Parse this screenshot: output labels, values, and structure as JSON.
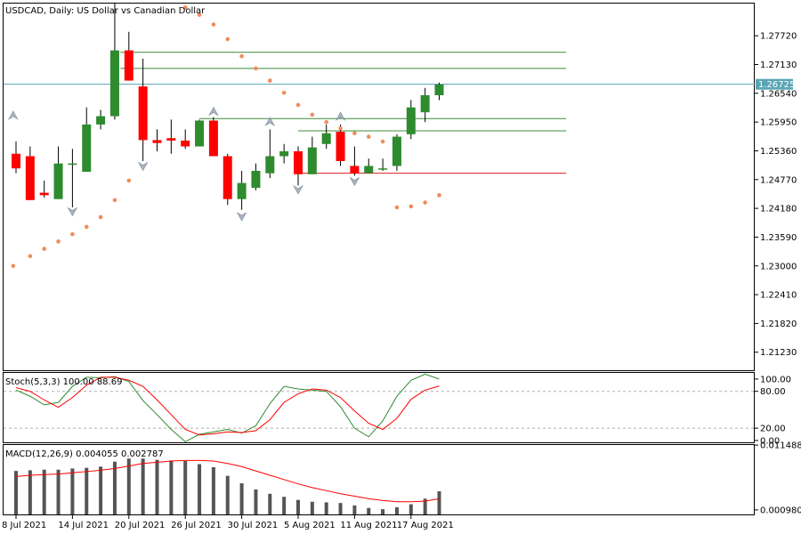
{
  "chart_data": [
    {
      "type": "candlestick",
      "title": "USDCAD, Daily:  US Dollar vs Canadian Dollar",
      "y_ticks": [
        "1.27720",
        "1.27130",
        "1.26540",
        "1.25950",
        "1.25360",
        "1.24770",
        "1.24180",
        "1.23590",
        "1.23000",
        "1.22410",
        "1.21820",
        "1.21230"
      ],
      "ylim": [
        1.2086,
        1.2838
      ],
      "x_ticks": [
        "8 Jul 2021",
        "14 Jul 2021",
        "20 Jul 2021",
        "26 Jul 2021",
        "30 Jul 2021",
        "5 Aug 2021",
        "11 Aug 2021",
        "17 Aug 2021"
      ],
      "x_tick_index": [
        0,
        4,
        8,
        12,
        16,
        20,
        24,
        28
      ],
      "current_price": "1.26725",
      "current_price_value": 1.26725,
      "colors": {
        "bull": "#2e8b2e",
        "bear": "#ff0000",
        "psar": "#f08c5a",
        "price_line": "#5aa5b4",
        "level_green": "#3c8c3c",
        "level_red": "#e02020"
      },
      "candles": [
        {
          "o": 1.253,
          "h": 1.2555,
          "l": 1.249,
          "c": 1.25
        },
        {
          "o": 1.2525,
          "h": 1.2545,
          "l": 1.2435,
          "c": 1.2435
        },
        {
          "o": 1.245,
          "h": 1.2475,
          "l": 1.244,
          "c": 1.2445
        },
        {
          "o": 1.2437,
          "h": 1.2545,
          "l": 1.2437,
          "c": 1.251
        },
        {
          "o": 1.251,
          "h": 1.254,
          "l": 1.242,
          "c": 1.251
        },
        {
          "o": 1.2493,
          "h": 1.2625,
          "l": 1.2493,
          "c": 1.259
        },
        {
          "o": 1.259,
          "h": 1.262,
          "l": 1.258,
          "c": 1.2607
        },
        {
          "o": 1.2607,
          "h": 1.2838,
          "l": 1.26,
          "c": 1.2742
        },
        {
          "o": 1.2742,
          "h": 1.278,
          "l": 1.268,
          "c": 1.268
        },
        {
          "o": 1.2668,
          "h": 1.2725,
          "l": 1.2515,
          "c": 1.2558
        },
        {
          "o": 1.2558,
          "h": 1.258,
          "l": 1.2535,
          "c": 1.2552
        },
        {
          "o": 1.2562,
          "h": 1.26,
          "l": 1.253,
          "c": 1.2557
        },
        {
          "o": 1.2557,
          "h": 1.258,
          "l": 1.254,
          "c": 1.2545
        },
        {
          "o": 1.2545,
          "h": 1.26,
          "l": 1.2545,
          "c": 1.2598
        },
        {
          "o": 1.2598,
          "h": 1.2605,
          "l": 1.2525,
          "c": 1.2525
        },
        {
          "o": 1.2525,
          "h": 1.253,
          "l": 1.2425,
          "c": 1.2437
        },
        {
          "o": 1.2437,
          "h": 1.2495,
          "l": 1.2415,
          "c": 1.247
        },
        {
          "o": 1.246,
          "h": 1.251,
          "l": 1.2455,
          "c": 1.2495
        },
        {
          "o": 1.249,
          "h": 1.258,
          "l": 1.248,
          "c": 1.2525
        },
        {
          "o": 1.2525,
          "h": 1.255,
          "l": 1.251,
          "c": 1.2535
        },
        {
          "o": 1.2535,
          "h": 1.2545,
          "l": 1.2465,
          "c": 1.2488
        },
        {
          "o": 1.2488,
          "h": 1.2565,
          "l": 1.2488,
          "c": 1.2543
        },
        {
          "o": 1.255,
          "h": 1.259,
          "l": 1.254,
          "c": 1.2572
        },
        {
          "o": 1.2575,
          "h": 1.259,
          "l": 1.2505,
          "c": 1.2515
        },
        {
          "o": 1.2505,
          "h": 1.2545,
          "l": 1.2485,
          "c": 1.249
        },
        {
          "o": 1.249,
          "h": 1.252,
          "l": 1.249,
          "c": 1.2505
        },
        {
          "o": 1.25,
          "h": 1.252,
          "l": 1.2495,
          "c": 1.25
        },
        {
          "o": 1.2505,
          "h": 1.257,
          "l": 1.2495,
          "c": 1.2565
        },
        {
          "o": 1.257,
          "h": 1.264,
          "l": 1.256,
          "c": 1.2625
        },
        {
          "o": 1.2615,
          "h": 1.2665,
          "l": 1.2595,
          "c": 1.265
        },
        {
          "o": 1.265,
          "h": 1.2676,
          "l": 1.264,
          "c": 1.2672
        }
      ],
      "psar": [
        {
          "i": -0.2,
          "v": 1.23
        },
        {
          "i": 1,
          "v": 1.232
        },
        {
          "i": 2,
          "v": 1.2335
        },
        {
          "i": 3,
          "v": 1.235
        },
        {
          "i": 4,
          "v": 1.2365
        },
        {
          "i": 5,
          "v": 1.238
        },
        {
          "i": 6,
          "v": 1.24
        },
        {
          "i": 7,
          "v": 1.2435
        },
        {
          "i": 8,
          "v": 1.2475
        },
        {
          "i": 12,
          "v": 1.283
        },
        {
          "i": 13,
          "v": 1.2815
        },
        {
          "i": 14,
          "v": 1.2795
        },
        {
          "i": 15,
          "v": 1.2765
        },
        {
          "i": 16,
          "v": 1.273
        },
        {
          "i": 17,
          "v": 1.2705
        },
        {
          "i": 18,
          "v": 1.268
        },
        {
          "i": 19,
          "v": 1.2655
        },
        {
          "i": 20,
          "v": 1.263
        },
        {
          "i": 21,
          "v": 1.261
        },
        {
          "i": 22,
          "v": 1.2595
        },
        {
          "i": 23,
          "v": 1.2582
        },
        {
          "i": 24,
          "v": 1.2572
        },
        {
          "i": 25,
          "v": 1.2565
        },
        {
          "i": 26,
          "v": 1.2555
        },
        {
          "i": 27,
          "v": 1.242
        },
        {
          "i": 28,
          "v": 1.2422
        },
        {
          "i": 29,
          "v": 1.243
        },
        {
          "i": 30,
          "v": 1.2445
        }
      ],
      "levels": [
        {
          "v": 1.2738,
          "from": 7.4,
          "to": 39,
          "color": "green"
        },
        {
          "v": 1.2705,
          "from": 7.4,
          "to": 39,
          "color": "green"
        },
        {
          "v": 1.2602,
          "from": 13,
          "to": 39,
          "color": "green"
        },
        {
          "v": 1.2577,
          "from": 20,
          "to": 39,
          "color": "green"
        },
        {
          "v": 1.249,
          "from": 20,
          "to": 39,
          "color": "red"
        }
      ],
      "fractals": [
        {
          "i": -0.2,
          "v": 1.261,
          "dir": "up"
        },
        {
          "i": 4,
          "v": 1.241,
          "dir": "down"
        },
        {
          "i": 9,
          "v": 1.2503,
          "dir": "down"
        },
        {
          "i": 14,
          "v": 1.2618,
          "dir": "up"
        },
        {
          "i": 16,
          "v": 1.24,
          "dir": "down"
        },
        {
          "i": 18,
          "v": 1.2597,
          "dir": "up"
        },
        {
          "i": 20,
          "v": 1.2455,
          "dir": "down"
        },
        {
          "i": 24,
          "v": 1.2472,
          "dir": "down"
        },
        {
          "i": 23,
          "v": 1.2608,
          "dir": "up"
        }
      ]
    },
    {
      "type": "line",
      "title": "Stoch(5,3,3) 100.00 88.69",
      "y_ticks": [
        "100.00",
        "80.00",
        "20.00",
        "0.00"
      ],
      "ylim": [
        -3,
        110
      ],
      "series": [
        {
          "color": "#2e8b2e",
          "values": [
            82,
            72,
            58,
            62,
            88,
            103,
            102,
            104,
            96,
            65,
            42,
            18,
            -2,
            10,
            14,
            18,
            12,
            24,
            60,
            88,
            84,
            82,
            80,
            55,
            20,
            6,
            32,
            72,
            98,
            108,
            100
          ]
        },
        {
          "color": "#ff0000",
          "values": [
            86,
            80,
            66,
            54,
            70,
            90,
            103,
            103,
            98,
            88,
            66,
            42,
            18,
            9,
            11,
            14,
            13,
            16,
            34,
            62,
            76,
            84,
            82,
            70,
            48,
            28,
            18,
            36,
            67,
            82,
            88.69
          ]
        }
      ],
      "dashed_levels": [
        80,
        20
      ]
    },
    {
      "type": "bar",
      "title": "MACD(12,26,9) 0.004055 0.002787",
      "y_ticks": [
        "0.011488",
        "0.000980"
      ],
      "ylim": [
        0.00025,
        0.0115
      ],
      "bar_color": "#555555",
      "signal_color": "#ff0000",
      "values": [
        0.0073,
        0.0074,
        0.0075,
        0.0075,
        0.0077,
        0.0078,
        0.008,
        0.0088,
        0.0093,
        0.0093,
        0.0091,
        0.009,
        0.0089,
        0.0084,
        0.0079,
        0.0065,
        0.0053,
        0.0043,
        0.0036,
        0.0031,
        0.0026,
        0.0023,
        0.0022,
        0.0021,
        0.0017,
        0.0013,
        0.0011,
        0.0014,
        0.0019,
        0.0028,
        0.004
      ],
      "signal": [
        0.0064,
        0.0066,
        0.0067,
        0.0068,
        0.007,
        0.0072,
        0.0074,
        0.0077,
        0.0081,
        0.0085,
        0.0087,
        0.0089,
        0.009,
        0.009,
        0.0089,
        0.0085,
        0.008,
        0.0073,
        0.0066,
        0.0059,
        0.0052,
        0.0046,
        0.0041,
        0.0036,
        0.0032,
        0.0028,
        0.0025,
        0.0023,
        0.0023,
        0.0024,
        0.0028
      ]
    }
  ]
}
